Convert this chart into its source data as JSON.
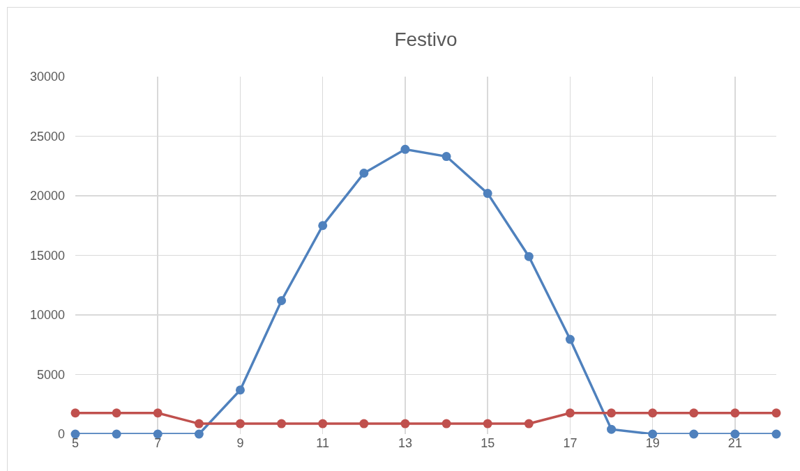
{
  "chart_data": {
    "type": "line",
    "title": "Festivo",
    "x": [
      5,
      6,
      7,
      8,
      9,
      10,
      11,
      12,
      13,
      14,
      15,
      16,
      17,
      18,
      19,
      20,
      21,
      22
    ],
    "series": [
      {
        "color": "#4f81bd",
        "values": [
          0,
          0,
          0,
          0,
          3700,
          11200,
          17500,
          21900,
          23900,
          23300,
          20200,
          14900,
          7950,
          400,
          0,
          0,
          0,
          0
        ]
      },
      {
        "color": "#c0504d",
        "values": [
          1770,
          1770,
          1770,
          870,
          870,
          870,
          870,
          870,
          870,
          870,
          870,
          870,
          1770,
          1770,
          1770,
          1770,
          1770,
          1770
        ]
      }
    ],
    "xlim": [
      5,
      22
    ],
    "xticks": [
      5,
      7,
      9,
      11,
      13,
      15,
      17,
      19,
      21
    ],
    "ylim": [
      0,
      30000
    ],
    "yticks": [
      0,
      5000,
      10000,
      15000,
      20000,
      25000,
      30000
    ],
    "grid": true,
    "marker": "circle"
  }
}
